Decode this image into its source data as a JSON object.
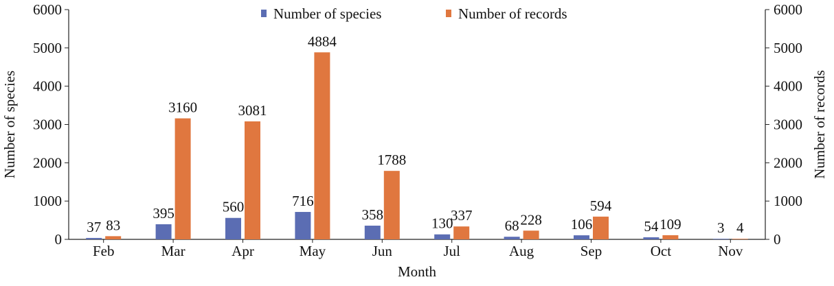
{
  "chart_data": {
    "type": "bar",
    "categories": [
      "Feb",
      "Mar",
      "Apr",
      "May",
      "Jun",
      "Jul",
      "Aug",
      "Sep",
      "Oct",
      "Nov"
    ],
    "series": [
      {
        "name": "Number of species",
        "color": "#5b6db3",
        "axis": "left",
        "values": [
          37,
          395,
          560,
          716,
          358,
          130,
          68,
          106,
          54,
          3
        ]
      },
      {
        "name": "Number of records",
        "color": "#e0773f",
        "axis": "right",
        "values": [
          83,
          3160,
          3081,
          4884,
          1788,
          337,
          228,
          594,
          109,
          4
        ]
      }
    ],
    "xlabel": "Month",
    "ylabel_left": "Number of species",
    "ylabel_right": "Number of records",
    "ylim_left": [
      0,
      6000
    ],
    "ylim_right": [
      0,
      6000
    ],
    "yticks": [
      "0",
      "1000",
      "2000",
      "3000",
      "4000",
      "5000",
      "6000"
    ],
    "legend": "top-center",
    "grid": false
  }
}
